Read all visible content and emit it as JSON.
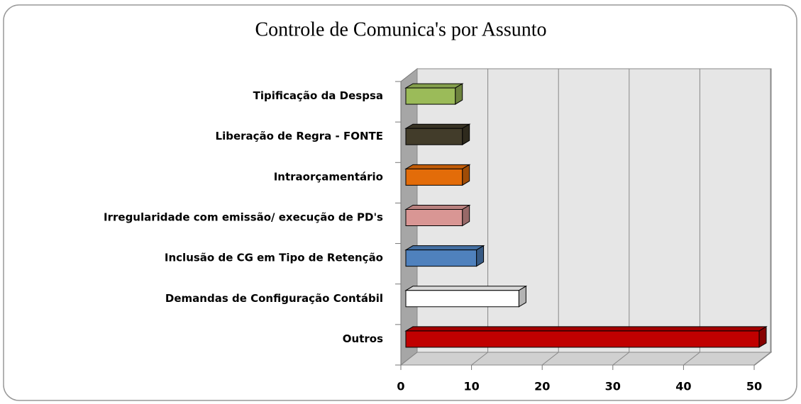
{
  "chart_data": {
    "type": "bar3d_horizontal",
    "title": "Controle de Comunica's por Assunto",
    "categories": [
      "Tipificação da Despsa",
      "Liberação de Regra - FONTE",
      "Intraorçamentário",
      "Irregularidade com emissão/ execução de PD's",
      "Inclusão de CG em Tipo de Retenção",
      "Demandas de Configuração Contábil",
      "Outros"
    ],
    "values": [
      7,
      8,
      8,
      8,
      10,
      16,
      50
    ],
    "colors": [
      "#9bbb59",
      "#423c2a",
      "#e36c09",
      "#d99694",
      "#4f81bd",
      "#ffffff",
      "#c00000"
    ],
    "xlim": [
      0,
      50
    ],
    "xticks": [
      0,
      10,
      20,
      30,
      40,
      50
    ],
    "grid": true
  }
}
